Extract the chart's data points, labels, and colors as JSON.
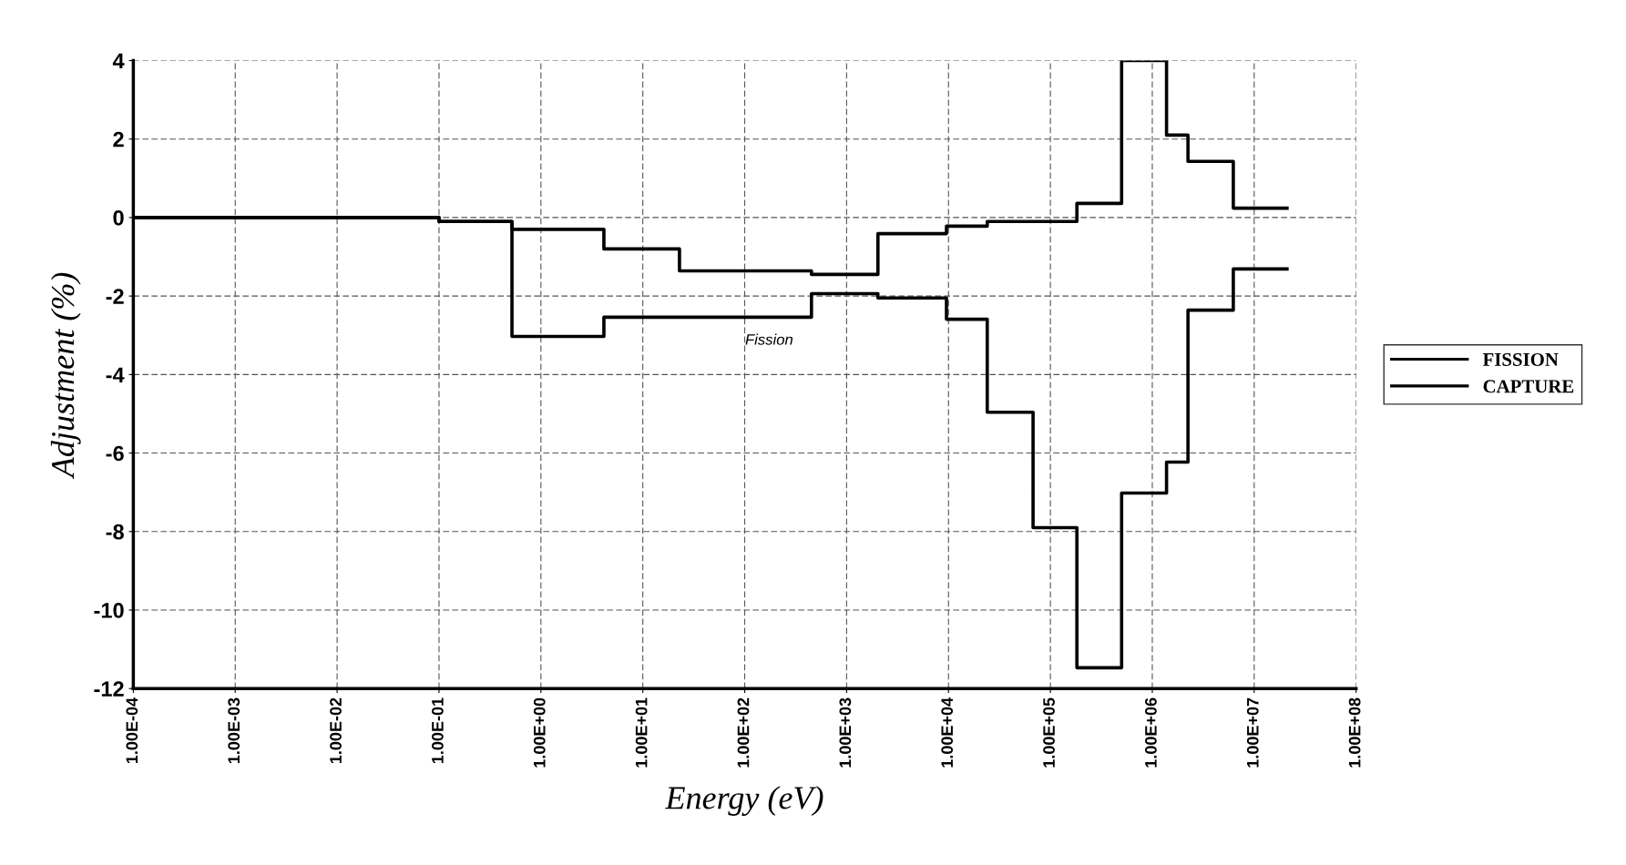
{
  "chart_data": {
    "type": "step",
    "xlabel": "Energy (eV)",
    "ylabel": "Adjustment (%)",
    "log": "x",
    "xlim": [
      0.0001,
      100000000
    ],
    "xticks": [
      {
        "value": 0.0001,
        "label": "1.00E-04"
      },
      {
        "value": 0.001,
        "label": "1.00E-03"
      },
      {
        "value": 0.01,
        "label": "1.00E-02"
      },
      {
        "value": 0.1,
        "label": "1.00E-01"
      },
      {
        "value": 1,
        "label": "1.00E+00"
      },
      {
        "value": 10,
        "label": "1.00E+01"
      },
      {
        "value": 100,
        "label": "1.00E+02"
      },
      {
        "value": 1000,
        "label": "1.00E+03"
      },
      {
        "value": 10000,
        "label": "1.00E+04"
      },
      {
        "value": 100000,
        "label": "1.00E+05"
      },
      {
        "value": 1000000,
        "label": "1.00E+06"
      },
      {
        "value": 10000000,
        "label": "1.00E+07"
      },
      {
        "value": 100000000,
        "label": "1.00E+08"
      }
    ],
    "ylim": [
      -12,
      4
    ],
    "yticks": [
      -12,
      -10,
      -8,
      -6,
      -4,
      -2,
      0,
      2,
      4
    ],
    "grid": true,
    "legend": "right",
    "line_style": "solid",
    "marker": "none",
    "series": [
      {
        "name": "FISSION",
        "color": "#000000",
        "x": [
          0.0001,
          0.1,
          0.52,
          4.15,
          452,
          2030,
          9550,
          24000,
          67600,
          182000,
          500000,
          1380000,
          2240000,
          6240000,
          21000000
        ],
        "values": [
          0,
          -0.1,
          -3.03,
          -2.54,
          -1.94,
          -2.05,
          -2.59,
          -4.96,
          -7.9,
          -11.47,
          -7.02,
          -6.23,
          -2.36,
          -1.31,
          -1.31
        ]
      },
      {
        "name": "CAPTURE",
        "color": "#000000",
        "x": [
          0.0001,
          0.1,
          0.52,
          4.15,
          22.9,
          452,
          2030,
          9550,
          24000,
          182000,
          500000,
          1380000,
          2240000,
          6240000,
          21000000
        ],
        "values": [
          0,
          -0.1,
          -0.3,
          -0.8,
          -1.36,
          -1.45,
          -0.41,
          -0.22,
          -0.1,
          0.36,
          4.0,
          2.1,
          1.43,
          0.24,
          0.24
        ]
      }
    ],
    "annotations": [
      "Fission"
    ]
  }
}
